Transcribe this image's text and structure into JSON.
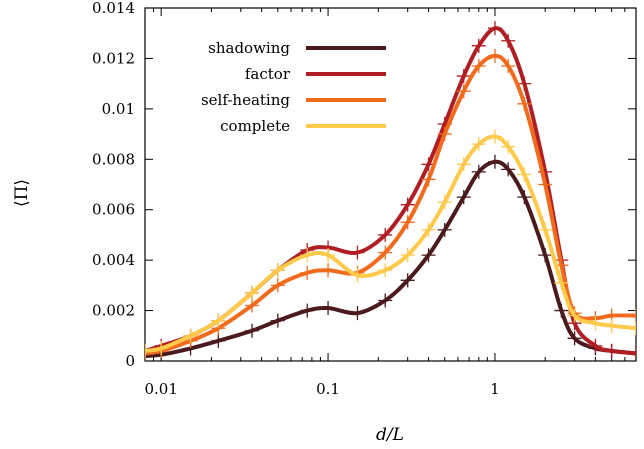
{
  "chart_data": {
    "type": "line",
    "title": "",
    "xlabel": "d/L",
    "ylabel": "⟨Π⟩",
    "xscale": "log",
    "xlim": [
      0.008,
      7
    ],
    "ylim": [
      0,
      0.014
    ],
    "x_ticks": [
      0.01,
      0.1,
      1
    ],
    "x_tick_labels": [
      "0.01",
      "0.1",
      "1"
    ],
    "y_ticks": [
      0,
      0.002,
      0.004,
      0.006,
      0.008,
      0.01,
      0.012,
      0.014
    ],
    "y_tick_labels": [
      "0",
      "0.002",
      "0.004",
      "0.006",
      "0.008",
      "0.01",
      "0.012",
      "0.014"
    ],
    "grid": false,
    "legend_position": "top-left",
    "series": [
      {
        "name": "shadowing",
        "color": "#4a1a1c",
        "x": [
          0.008,
          0.01,
          0.015,
          0.022,
          0.035,
          0.05,
          0.075,
          0.1,
          0.15,
          0.22,
          0.3,
          0.4,
          0.5,
          0.65,
          0.8,
          1.0,
          1.2,
          1.5,
          2.0,
          2.5,
          3.0,
          4.0,
          5.0,
          7.0
        ],
        "y": [
          0.0002,
          0.00025,
          0.0005,
          0.0008,
          0.0012,
          0.0016,
          0.002,
          0.0021,
          0.0019,
          0.0024,
          0.0032,
          0.0042,
          0.0052,
          0.0065,
          0.0075,
          0.0079,
          0.0076,
          0.0065,
          0.0042,
          0.002,
          0.0009,
          0.0005,
          0.0004,
          0.0003
        ]
      },
      {
        "name": "factor",
        "color": "#b01e23",
        "x": [
          0.008,
          0.01,
          0.015,
          0.022,
          0.035,
          0.05,
          0.075,
          0.1,
          0.15,
          0.22,
          0.3,
          0.4,
          0.5,
          0.65,
          0.8,
          1.0,
          1.2,
          1.5,
          2.0,
          2.5,
          3.0,
          4.0,
          5.0,
          7.0
        ],
        "y": [
          0.0004,
          0.0006,
          0.001,
          0.0016,
          0.0027,
          0.0036,
          0.0044,
          0.0045,
          0.0043,
          0.005,
          0.0062,
          0.0078,
          0.0094,
          0.0113,
          0.0125,
          0.0132,
          0.0127,
          0.011,
          0.0075,
          0.004,
          0.0015,
          0.0006,
          0.0004,
          0.0003
        ]
      },
      {
        "name": "self-heating",
        "color": "#f26b1d",
        "x": [
          0.008,
          0.01,
          0.015,
          0.022,
          0.035,
          0.05,
          0.075,
          0.1,
          0.15,
          0.22,
          0.3,
          0.4,
          0.5,
          0.65,
          0.8,
          1.0,
          1.2,
          1.5,
          2.0,
          2.5,
          3.0,
          4.0,
          5.0,
          7.0
        ],
        "y": [
          0.0003,
          0.0004,
          0.0008,
          0.0013,
          0.0022,
          0.003,
          0.0035,
          0.0036,
          0.0035,
          0.0043,
          0.0055,
          0.0072,
          0.009,
          0.0107,
          0.0117,
          0.0121,
          0.0117,
          0.0102,
          0.007,
          0.0038,
          0.0019,
          0.0017,
          0.0018,
          0.0018
        ]
      },
      {
        "name": "complete",
        "color": "#ffc94a",
        "x": [
          0.008,
          0.01,
          0.015,
          0.022,
          0.035,
          0.05,
          0.075,
          0.1,
          0.15,
          0.22,
          0.3,
          0.4,
          0.5,
          0.65,
          0.8,
          1.0,
          1.2,
          1.5,
          2.0,
          2.5,
          3.0,
          4.0,
          5.0,
          7.0
        ],
        "y": [
          0.0004,
          0.0005,
          0.001,
          0.0016,
          0.0027,
          0.0036,
          0.0042,
          0.0042,
          0.0034,
          0.0036,
          0.0042,
          0.0052,
          0.0063,
          0.0078,
          0.0086,
          0.0089,
          0.0085,
          0.0074,
          0.0052,
          0.0031,
          0.0018,
          0.0015,
          0.0014,
          0.0013
        ]
      }
    ]
  }
}
